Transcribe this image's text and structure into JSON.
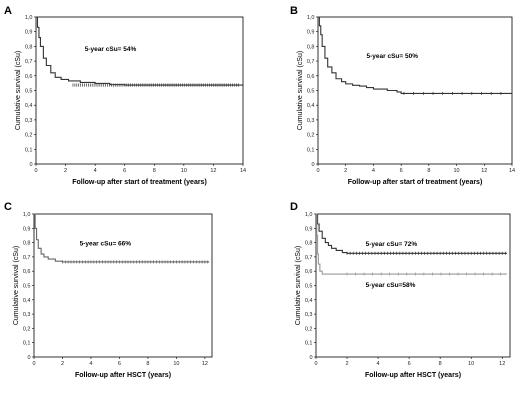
{
  "chart_data": [
    {
      "type": "line",
      "panel": "A",
      "ylabel": "Cumulative survival (cSu)",
      "xlabel": "Follow-up after start of treatment (years)",
      "xlim": [
        0,
        14
      ],
      "ylim": [
        0,
        1.0
      ],
      "xticks": [
        0,
        2,
        4,
        6,
        8,
        10,
        12,
        14
      ],
      "yticks": [
        0,
        0.1,
        0.2,
        0.3,
        0.4,
        0.5,
        0.6,
        0.7,
        0.8,
        0.9,
        1.0
      ],
      "annotations": [
        {
          "text": "5-year cSu= 54%",
          "x": 3.3,
          "y": 0.77
        }
      ],
      "series": [
        {
          "color": "#333333",
          "points": [
            [
              0,
              1.0
            ],
            [
              0.1,
              0.93
            ],
            [
              0.2,
              0.86
            ],
            [
              0.3,
              0.8
            ],
            [
              0.5,
              0.72
            ],
            [
              0.7,
              0.67
            ],
            [
              1.0,
              0.62
            ],
            [
              1.3,
              0.59
            ],
            [
              1.7,
              0.575
            ],
            [
              2.2,
              0.565
            ],
            [
              3.0,
              0.555
            ],
            [
              4.0,
              0.548
            ],
            [
              5.0,
              0.54
            ],
            [
              6.0,
              0.537
            ],
            [
              14.0,
              0.537
            ]
          ],
          "censor_from": 2.5,
          "censor_to": 13.8,
          "censor_step": 0.13
        }
      ]
    },
    {
      "type": "line",
      "panel": "B",
      "ylabel": "Cumulative survival (cSu)",
      "xlabel": "Follow-up after start of treatment (years)",
      "xlim": [
        0,
        14
      ],
      "ylim": [
        0,
        1.0
      ],
      "xticks": [
        0,
        2,
        4,
        6,
        8,
        10,
        12,
        14
      ],
      "yticks": [
        0,
        0.1,
        0.2,
        0.3,
        0.4,
        0.5,
        0.6,
        0.7,
        0.8,
        0.9,
        1.0
      ],
      "annotations": [
        {
          "text": "5-year cSu= 50%",
          "x": 3.5,
          "y": 0.72
        }
      ],
      "series": [
        {
          "color": "#333333",
          "points": [
            [
              0,
              1.0
            ],
            [
              0.1,
              0.94
            ],
            [
              0.2,
              0.88
            ],
            [
              0.3,
              0.8
            ],
            [
              0.5,
              0.72
            ],
            [
              0.7,
              0.66
            ],
            [
              1.0,
              0.62
            ],
            [
              1.3,
              0.58
            ],
            [
              1.7,
              0.56
            ],
            [
              2.0,
              0.545
            ],
            [
              2.5,
              0.535
            ],
            [
              3.0,
              0.53
            ],
            [
              3.5,
              0.52
            ],
            [
              4.0,
              0.51
            ],
            [
              5.0,
              0.5
            ],
            [
              5.7,
              0.49
            ],
            [
              6.0,
              0.48
            ],
            [
              14.0,
              0.48
            ]
          ],
          "censor_from": 6.2,
          "censor_to": 13.5,
          "censor_step": 0.7
        }
      ]
    },
    {
      "type": "line",
      "panel": "C",
      "ylabel": "Cumulative survival (cSu)",
      "xlabel": "Follow-up after HSCT (years)",
      "xlim": [
        0,
        12.5
      ],
      "ylim": [
        0,
        1.0
      ],
      "xticks": [
        0,
        2,
        4,
        6,
        8,
        10,
        12
      ],
      "yticks": [
        0,
        0.1,
        0.2,
        0.3,
        0.4,
        0.5,
        0.6,
        0.7,
        0.8,
        0.9,
        1.0
      ],
      "annotations": [
        {
          "text": "5-year cSu= 66%",
          "x": 3.2,
          "y": 0.78
        }
      ],
      "series": [
        {
          "color": "#666666",
          "points": [
            [
              0,
              1.0
            ],
            [
              0.08,
              0.9
            ],
            [
              0.18,
              0.82
            ],
            [
              0.3,
              0.76
            ],
            [
              0.5,
              0.72
            ],
            [
              0.7,
              0.7
            ],
            [
              1.0,
              0.685
            ],
            [
              1.5,
              0.67
            ],
            [
              2.0,
              0.665
            ],
            [
              12.3,
              0.665
            ]
          ],
          "censor_from": 2.0,
          "censor_to": 12.2,
          "censor_step": 0.2
        }
      ]
    },
    {
      "type": "line",
      "panel": "D",
      "ylabel": "Cumulative survival (cSu)",
      "xlabel": "Follow-up after HSCT (years)",
      "xlim": [
        0,
        12.5
      ],
      "ylim": [
        0,
        1.0
      ],
      "xticks": [
        0,
        2,
        4,
        6,
        8,
        10,
        12
      ],
      "yticks": [
        0,
        0.1,
        0.2,
        0.3,
        0.4,
        0.5,
        0.6,
        0.7,
        0.8,
        0.9,
        1.0
      ],
      "annotations": [
        {
          "text": "5-year cSu= 72%",
          "x": 3.2,
          "y": 0.775
        },
        {
          "text": "5-year cSu=58%",
          "x": 3.2,
          "y": 0.49
        }
      ],
      "series": [
        {
          "color": "#333333",
          "points": [
            [
              0,
              1.0
            ],
            [
              0.1,
              0.93
            ],
            [
              0.2,
              0.88
            ],
            [
              0.4,
              0.83
            ],
            [
              0.6,
              0.8
            ],
            [
              0.8,
              0.78
            ],
            [
              1.0,
              0.76
            ],
            [
              1.3,
              0.745
            ],
            [
              1.7,
              0.73
            ],
            [
              2.0,
              0.725
            ],
            [
              12.3,
              0.725
            ]
          ],
          "censor_from": 2.0,
          "censor_to": 12.2,
          "censor_step": 0.2
        },
        {
          "color": "#999999",
          "points": [
            [
              0,
              1.0
            ],
            [
              0.05,
              0.85
            ],
            [
              0.1,
              0.72
            ],
            [
              0.15,
              0.65
            ],
            [
              0.25,
              0.6
            ],
            [
              0.4,
              0.58
            ],
            [
              12.3,
              0.58
            ]
          ],
          "censor_from": 2.0,
          "censor_to": 12.2,
          "censor_step": 0.55
        }
      ]
    }
  ]
}
